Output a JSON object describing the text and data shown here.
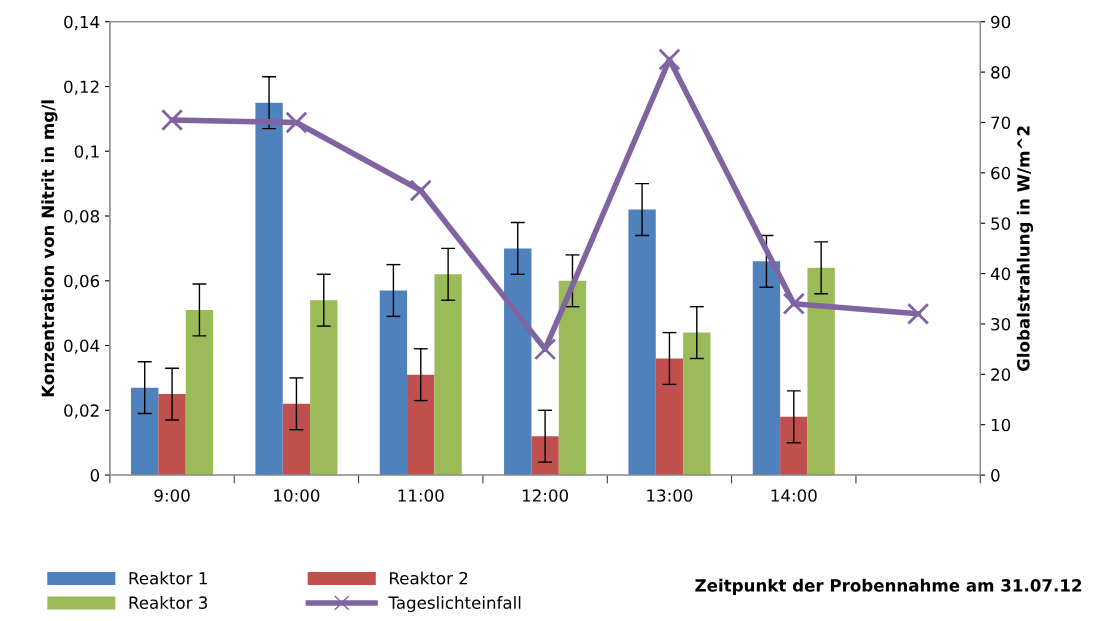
{
  "chart_data": {
    "type": "bar",
    "categories": [
      "9:00",
      "10:00",
      "11:00",
      "12:00",
      "13:00",
      "14:00",
      null
    ],
    "series": [
      {
        "name": "Reaktor 1",
        "color": "#4f81bd",
        "values": [
          0.027,
          0.115,
          0.057,
          0.07,
          0.082,
          0.066,
          null
        ],
        "errors": [
          0.008,
          0.008,
          0.008,
          0.008,
          0.008,
          0.008,
          null
        ]
      },
      {
        "name": "Reaktor 2",
        "color": "#c0504d",
        "values": [
          0.025,
          0.022,
          0.031,
          0.012,
          0.036,
          0.018,
          null
        ],
        "errors": [
          0.008,
          0.008,
          0.008,
          0.008,
          0.008,
          0.008,
          null
        ]
      },
      {
        "name": "Reaktor 3",
        "color": "#9bbb59",
        "values": [
          0.051,
          0.054,
          0.062,
          0.06,
          0.044,
          0.064,
          null
        ],
        "errors": [
          0.008,
          0.008,
          0.008,
          0.008,
          0.008,
          0.008,
          null
        ]
      },
      {
        "name": "Tageslichteinfall",
        "color": "#8064a2",
        "type": "line",
        "axis": "y2",
        "marker": "cross",
        "values": [
          70.5,
          70,
          56.5,
          25,
          82.5,
          34,
          32
        ]
      }
    ],
    "ylabel": "Konzentration von Nitrit in mg/l",
    "y2label": "Globalstrahlung in W/m^2",
    "xlabel": "Zeitpunkt der Probennahme am 31.07.12",
    "ylim": [
      0,
      0.14
    ],
    "yticks": [
      0,
      {
        "value": 0.02,
        "label": "0,02"
      },
      {
        "value": 0.04,
        "label": "0,04"
      },
      {
        "value": 0.06,
        "label": "0,06"
      },
      {
        "value": 0.08,
        "label": "0,08"
      },
      {
        "value": 0.1,
        "label": "0,1"
      },
      {
        "value": 0.12,
        "label": "0,12"
      },
      {
        "value": 0.14,
        "label": "0,14"
      }
    ],
    "y2lim": [
      0,
      90
    ],
    "y2ticks": [
      0,
      10,
      20,
      30,
      40,
      50,
      60,
      70,
      80,
      90
    ],
    "grid": false,
    "legend": "bottom"
  }
}
